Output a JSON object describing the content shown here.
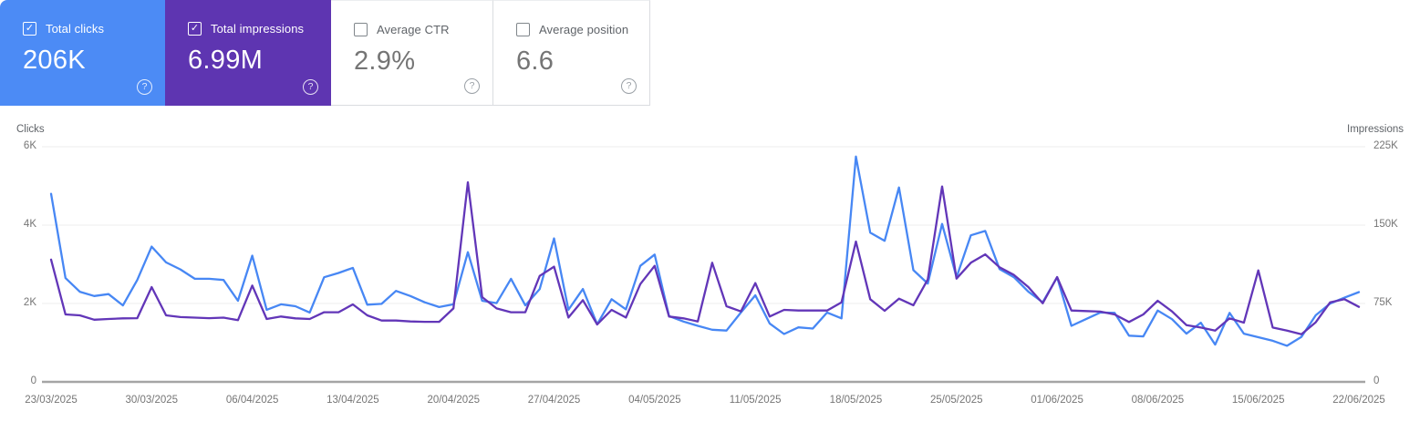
{
  "cards": [
    {
      "label": "Total clicks",
      "value": "206K",
      "checked": true,
      "selected": true,
      "bg": "#4c8bf5",
      "fg": "#ffffff"
    },
    {
      "label": "Total impressions",
      "value": "6.99M",
      "checked": true,
      "selected": true,
      "bg": "#5e35b1",
      "fg": "#ffffff"
    },
    {
      "label": "Average CTR",
      "value": "2.9%",
      "checked": false,
      "selected": false
    },
    {
      "label": "Average position",
      "value": "6.6",
      "checked": false,
      "selected": false
    }
  ],
  "icons": {
    "checkbox_checked": "✓",
    "help": "?"
  },
  "chart_data": {
    "type": "line",
    "x_tick_labels": [
      "23/03/2025",
      "30/03/2025",
      "06/04/2025",
      "13/04/2025",
      "20/04/2025",
      "27/04/2025",
      "04/05/2025",
      "11/05/2025",
      "18/05/2025",
      "25/05/2025",
      "01/06/2025",
      "08/06/2025",
      "15/06/2025",
      "22/06/2025"
    ],
    "x_unit": "day",
    "x_point_count": 92,
    "grid": true,
    "legend": "none",
    "left_axis": {
      "label": "Clicks",
      "ticks_bottom_to_top": [
        "0",
        "2K",
        "4K",
        "6K"
      ],
      "range": [
        0,
        6000
      ]
    },
    "right_axis": {
      "label": "Impressions",
      "ticks_bottom_to_top": [
        "0",
        "75K",
        "150K",
        "225K"
      ],
      "range": [
        0,
        225000
      ]
    },
    "series": [
      {
        "id": "clicks",
        "name": "Total clicks",
        "axis": "left",
        "color": "#4787f4",
        "values": [
          4800,
          2650,
          2300,
          2190,
          2240,
          1950,
          2600,
          3450,
          3050,
          2870,
          2630,
          2630,
          2600,
          2070,
          3220,
          1840,
          1980,
          1930,
          1770,
          2670,
          2780,
          2910,
          1970,
          1990,
          2320,
          2190,
          2030,
          1910,
          1980,
          3310,
          2070,
          2010,
          2630,
          1950,
          2370,
          3660,
          1840,
          2370,
          1470,
          2110,
          1850,
          2960,
          3250,
          1680,
          1540,
          1430,
          1330,
          1310,
          1770,
          2210,
          1490,
          1220,
          1390,
          1360,
          1770,
          1620,
          5750,
          3810,
          3600,
          4960,
          2850,
          2510,
          4030,
          2670,
          3740,
          3850,
          2880,
          2670,
          2300,
          2030,
          2670,
          1430,
          1600,
          1770,
          1760,
          1180,
          1160,
          1820,
          1600,
          1230,
          1510,
          950,
          1760,
          1230,
          1140,
          1050,
          920,
          1150,
          1700,
          2000,
          2150,
          2290
        ]
      },
      {
        "id": "impressions",
        "name": "Total impressions",
        "axis": "right",
        "color": "#6236b8",
        "values": [
          117000,
          64500,
          63700,
          59500,
          60200,
          60800,
          61000,
          90700,
          63700,
          62000,
          61500,
          61000,
          61500,
          59000,
          92200,
          60200,
          62500,
          60800,
          60200,
          66600,
          66600,
          74100,
          63700,
          58700,
          58700,
          57800,
          57500,
          57500,
          70300,
          191000,
          81100,
          70300,
          66600,
          66600,
          101400,
          110200,
          61600,
          78200,
          54900,
          68900,
          61600,
          93600,
          111000,
          62500,
          60800,
          57800,
          114000,
          72400,
          67400,
          94500,
          62500,
          68900,
          68300,
          68300,
          68300,
          76100,
          134300,
          79100,
          68000,
          79600,
          73300,
          98000,
          187000,
          98800,
          114000,
          122000,
          109600,
          102300,
          90700,
          75200,
          100300,
          68300,
          67800,
          67200,
          64500,
          57300,
          64500,
          77600,
          67400,
          54300,
          52000,
          49100,
          60800,
          56700,
          106700,
          52000,
          49100,
          45600,
          57000,
          76100,
          79100,
          71800
        ]
      }
    ]
  }
}
